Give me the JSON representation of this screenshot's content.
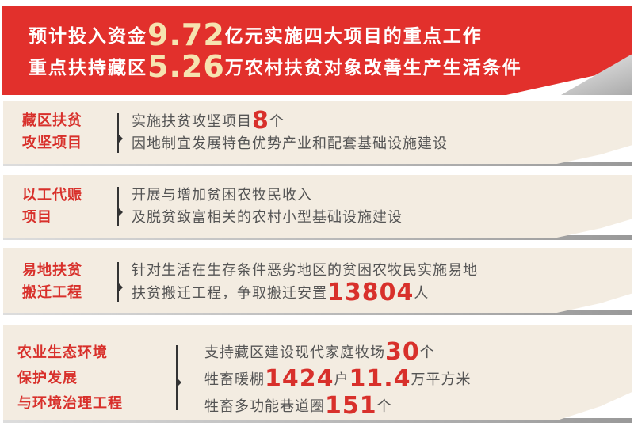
{
  "header": {
    "line1": {
      "a": "预计投入资金",
      "n": "9.72",
      "b": "亿元实施四大项目的重点工作"
    },
    "line2": {
      "a": "重点扶持藏区",
      "n": "5.26",
      "b": "万农村扶贫对象改善生产生活条件"
    }
  },
  "sections": [
    {
      "label1": "藏区扶贫",
      "label2": "攻坚项目",
      "l1a": "实施扶贫攻坚项目",
      "l1n": "8",
      "l1b": "个",
      "l2": "因地制宜发展特色优势产业和配套基础设施建设"
    },
    {
      "label1": "以工代赈",
      "label2": "项目",
      "l1": "开展与增加贫困农牧民收入",
      "l2": "及脱贫致富相关的农村小型基础设施建设"
    },
    {
      "label1": "易地扶贫",
      "label2": "搬迁工程",
      "l1": "针对生活在生存条件恶劣地区的贫困农牧民实施易地",
      "l2a": "扶贫搬迁工程，争取搬迁安置",
      "l2n": "13804",
      "l2b": "人"
    },
    {
      "label1": "农业生态环境",
      "label2": "保护发展",
      "label3": "与环境治理工程",
      "l1a": "支持藏区建设现代家庭牧场",
      "l1n": "30",
      "l1b": "个",
      "l2a": "牲畜暖棚",
      "l2n": "1424",
      "l2b": "户",
      "l2n2": "11.4",
      "l2c": "万平方米",
      "l3a": "牲畜多功能巷道圈",
      "l3n": "151",
      "l3b": "个"
    }
  ],
  "colors": {
    "header_red": "#e2302c",
    "accent_red": "#d8302b",
    "panel": "#f3ece1",
    "text": "#555555"
  }
}
